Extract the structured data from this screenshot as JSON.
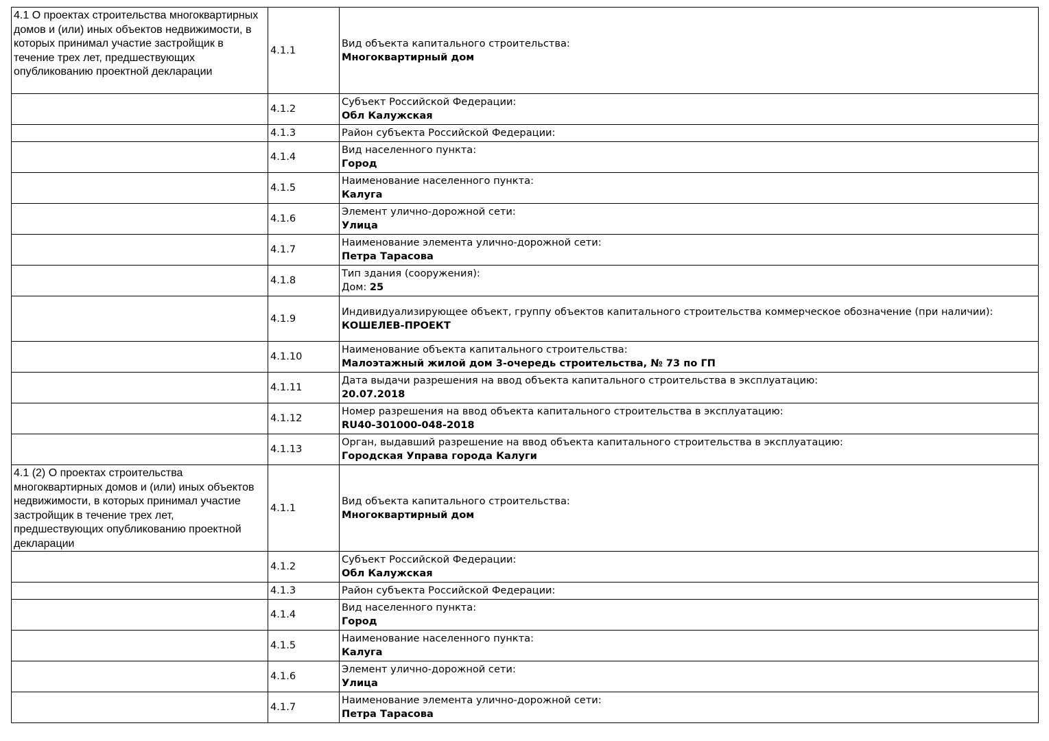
{
  "sections": [
    {
      "title": "4.1 О проектах строительства многоквартирных домов и (или) иных объектов недвижимости, в которых принимал участие застройщик в течение трех лет, предшествующих опубликованию проектной декларации",
      "rows": [
        {
          "num": "4.1.1",
          "label": "Вид объекта капитального строительства:",
          "value": "Многоквартирный дом"
        },
        {
          "num": "4.1.2",
          "label": "Субъект Российской Федерации:",
          "value": "Обл Калужская"
        },
        {
          "num": "4.1.3",
          "label": "Район субъекта Российской Федерации:",
          "value": ""
        },
        {
          "num": "4.1.4",
          "label": "Вид населенного пункта:",
          "value": "Город"
        },
        {
          "num": "4.1.5",
          "label": "Наименование населенного пункта:",
          "value": "Калуга"
        },
        {
          "num": "4.1.6",
          "label": "Элемент улично-дорожной сети:",
          "value": "Улица"
        },
        {
          "num": "4.1.7",
          "label": "Наименование элемента улично-дорожной сети:",
          "value": "Петра Тарасова"
        },
        {
          "num": "4.1.8",
          "label": "Тип здания (сооружения):",
          "value_prefix": "Дом: ",
          "value": "25"
        },
        {
          "num": "4.1.9",
          "label": "Индивидуализирующее объект, группу объектов капитального строительства коммерческое обозначение (при наличии):",
          "value": "КОШЕЛЕВ-ПРОЕКТ"
        },
        {
          "num": "4.1.10",
          "label": "Наименование объекта капитального строительства:",
          "value": "Малоэтажный жилой дом 3-очередь строительства, № 73 по ГП"
        },
        {
          "num": "4.1.11",
          "label": "Дата выдачи разрешения на ввод объекта капитального строительства в эксплуатацию:",
          "value": "20.07.2018"
        },
        {
          "num": "4.1.12",
          "label": "Номер разрешения на ввод объекта капитального строительства в эксплуатацию:",
          "value": "RU40-301000-048-2018"
        },
        {
          "num": "4.1.13",
          "label": "Орган, выдавший разрешение на ввод объекта капитального строительства в эксплуатацию:",
          "value": "Городская Управа города Калуги"
        }
      ]
    },
    {
      "title": "4.1 (2) О проектах строительства многоквартирных домов и (или) иных объектов недвижимости, в которых принимал участие застройщик в течение трех лет, предшествующих опубликованию проектной декларации",
      "rows": [
        {
          "num": "4.1.1",
          "label": "Вид объекта капитального строительства:",
          "value": "Многоквартирный дом"
        },
        {
          "num": "4.1.2",
          "label": "Субъект Российской Федерации:",
          "value": "Обл Калужская"
        },
        {
          "num": "4.1.3",
          "label": "Район субъекта Российской Федерации:",
          "value": ""
        },
        {
          "num": "4.1.4",
          "label": "Вид населенного пункта:",
          "value": "Город"
        },
        {
          "num": "4.1.5",
          "label": "Наименование населенного пункта:",
          "value": "Калуга"
        },
        {
          "num": "4.1.6",
          "label": "Элемент улично-дорожной сети:",
          "value": "Улица"
        },
        {
          "num": "4.1.7",
          "label": "Наименование элемента улично-дорожной сети:",
          "value": "Петра Тарасова"
        }
      ]
    }
  ]
}
